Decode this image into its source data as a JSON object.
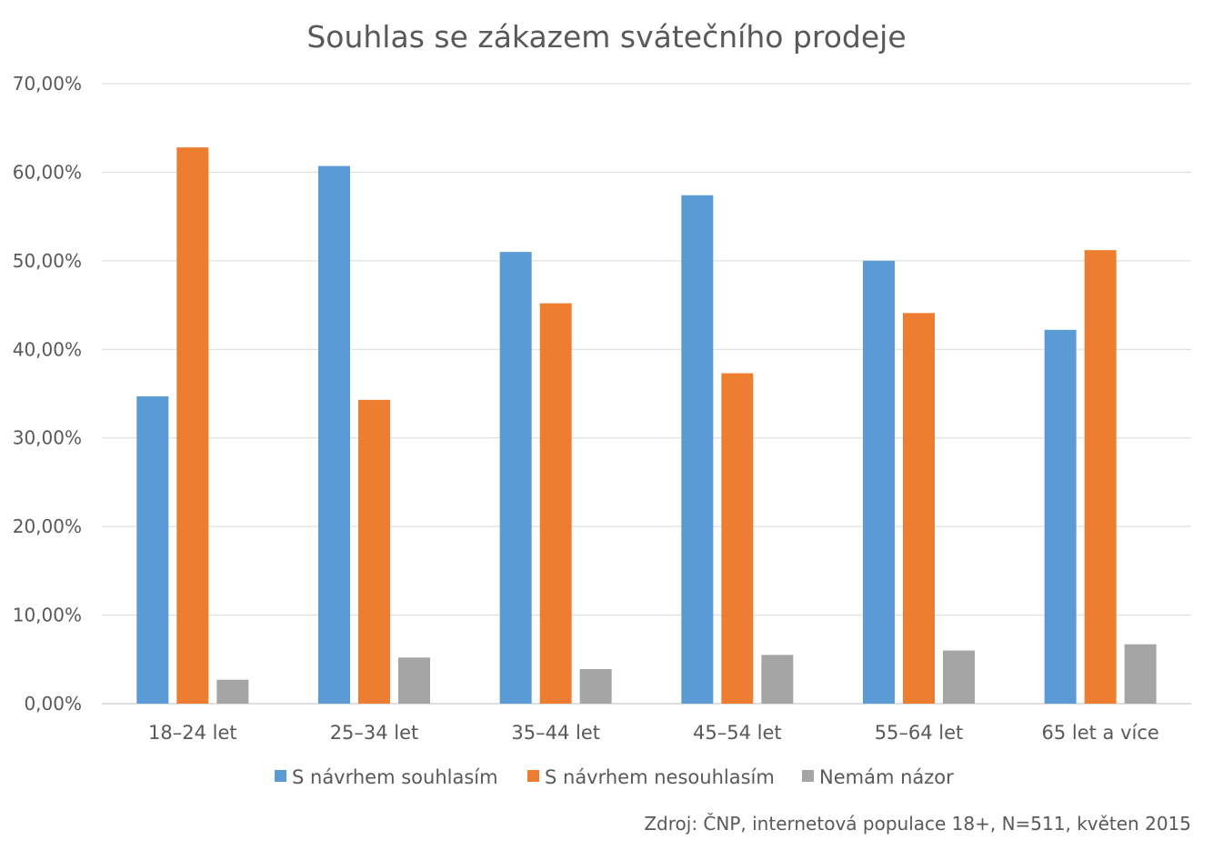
{
  "chart_data": {
    "type": "bar",
    "title": "Souhlas se zákazem svátečního prodeje",
    "xlabel": "",
    "ylabel": "",
    "categories": [
      "18–24 let",
      "25–34 let",
      "35–44 let",
      "45–54 let",
      "55–64 let",
      "65 let a více"
    ],
    "series": [
      {
        "name": "S návrhem souhlasím",
        "color": "#5B9BD5",
        "values": [
          34.7,
          60.7,
          51.0,
          57.4,
          50.0,
          42.2
        ]
      },
      {
        "name": "S návrhem nesouhlasím",
        "color": "#ED7D31",
        "values": [
          62.8,
          34.3,
          45.2,
          37.3,
          44.1,
          51.2
        ]
      },
      {
        "name": "Nemám názor",
        "color": "#A5A5A5",
        "values": [
          2.7,
          5.2,
          3.9,
          5.5,
          6.0,
          6.7
        ]
      }
    ],
    "ylim": [
      0,
      70
    ],
    "yticks": [
      0,
      10,
      20,
      30,
      40,
      50,
      60,
      70
    ],
    "ytick_labels": [
      "0,00%",
      "10,00%",
      "20,00%",
      "30,00%",
      "40,00%",
      "50,00%",
      "60,00%",
      "70,00%"
    ],
    "grid": true,
    "legend_position": "bottom",
    "source": "Zdroj: ČNP, internetová populace 18+, N=511, květen 2015"
  }
}
